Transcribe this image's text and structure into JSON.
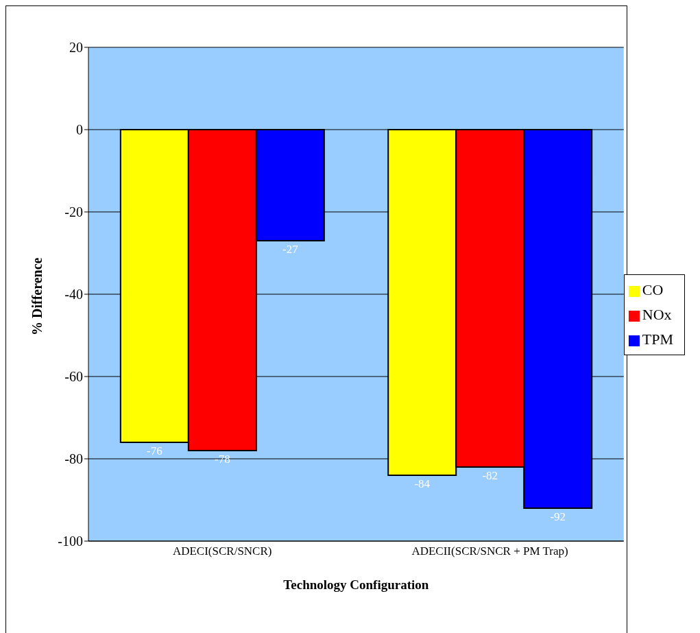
{
  "chart_data": {
    "type": "bar",
    "xlabel": "Technology Configuration",
    "ylabel": "% Difference",
    "categories": [
      "ADECI(SCR/SNCR)",
      "ADECII(SCR/SNCR + PM Trap)"
    ],
    "series": [
      {
        "name": "CO",
        "color": "#ffff00",
        "values": [
          -76,
          -84
        ]
      },
      {
        "name": "NOx",
        "color": "#ff0000",
        "values": [
          -78,
          -82
        ]
      },
      {
        "name": "TPM",
        "color": "#0000ff",
        "values": [
          -27,
          -92
        ]
      }
    ],
    "ylim": [
      -100,
      20
    ],
    "yticks": [
      -100,
      -80,
      -60,
      -40,
      -20,
      0,
      20
    ],
    "grid": "y",
    "legend": "right",
    "data_labels": true
  }
}
